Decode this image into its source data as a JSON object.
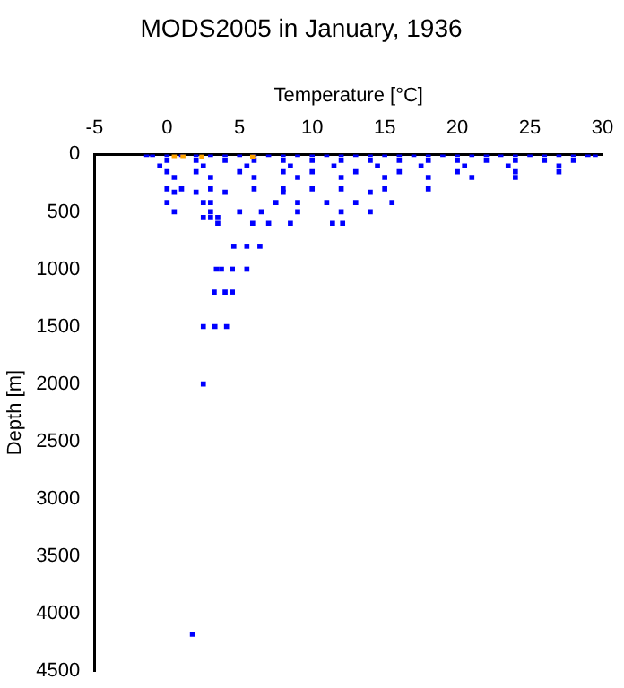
{
  "chart_data": {
    "type": "scatter",
    "title": "MODS2005 in January, 1936",
    "xlabel": "Temperature [°C]",
    "ylabel": "Depth [m]",
    "xlim": [
      -5,
      30
    ],
    "xticks": [
      -5,
      0,
      5,
      10,
      15,
      20,
      25,
      30
    ],
    "ylim": [
      4500,
      0
    ],
    "yticks": [
      0,
      500,
      1000,
      1500,
      2000,
      2500,
      3000,
      3500,
      4000,
      4500
    ],
    "grid": false,
    "legend": false,
    "marker": "square",
    "series": [
      {
        "color": "#0000ff",
        "x": [
          -1.4,
          -1,
          0,
          1,
          2,
          3,
          4,
          5,
          6,
          7,
          8,
          9,
          10,
          11,
          12,
          13,
          14,
          15,
          16,
          17,
          18,
          19,
          20,
          21,
          22,
          23,
          24,
          25,
          26,
          27,
          28,
          29,
          29.5,
          0,
          2,
          4,
          6,
          8,
          10,
          12,
          14,
          16,
          18,
          20,
          22,
          24,
          26,
          28,
          -0.5,
          2.5,
          5.5,
          8.5,
          11.5,
          14.5,
          17.5,
          20.5,
          23.5,
          27,
          0,
          2,
          5,
          8,
          10,
          13,
          16,
          20,
          24,
          27,
          0.5,
          3,
          6,
          9,
          12,
          15,
          18,
          21,
          24,
          0,
          1,
          3,
          6,
          8,
          10,
          12,
          15,
          18,
          0.5,
          2,
          4,
          8,
          14,
          0,
          2.5,
          3,
          7.5,
          9,
          11,
          13,
          15.5,
          0.5,
          3,
          5,
          6.5,
          9,
          12,
          14,
          2.5,
          3,
          3.5,
          3.5,
          5.9,
          7,
          8.5,
          11.4,
          12.1,
          4.6,
          5.5,
          6.4,
          3.4,
          3.75,
          4.5,
          5.5,
          3.25,
          4,
          4.5,
          2.5,
          3.3,
          4.1,
          2.5,
          1.75
        ],
        "values": [
          0,
          0,
          0,
          0,
          0,
          0,
          0,
          0,
          0,
          0,
          0,
          0,
          0,
          0,
          0,
          0,
          0,
          0,
          0,
          0,
          0,
          0,
          0,
          0,
          0,
          0,
          0,
          0,
          0,
          0,
          0,
          0,
          0,
          50,
          50,
          50,
          50,
          50,
          50,
          50,
          50,
          50,
          50,
          50,
          50,
          50,
          50,
          50,
          100,
          100,
          100,
          100,
          100,
          100,
          100,
          100,
          100,
          100,
          150,
          150,
          150,
          150,
          150,
          150,
          150,
          150,
          150,
          150,
          200,
          200,
          200,
          200,
          200,
          200,
          200,
          200,
          200,
          300,
          300,
          300,
          300,
          300,
          300,
          300,
          300,
          300,
          330,
          330,
          330,
          330,
          330,
          420,
          420,
          420,
          420,
          420,
          420,
          420,
          420,
          500,
          500,
          500,
          500,
          500,
          500,
          500,
          550,
          550,
          550,
          600,
          600,
          600,
          600,
          600,
          600,
          800,
          800,
          800,
          1000,
          1000,
          1000,
          1000,
          1200,
          1200,
          1200,
          1500,
          1500,
          1500,
          2000,
          4180
        ]
      },
      {
        "color": "#ffa500",
        "x": [
          0.5,
          1.1,
          2.4,
          5.9
        ],
        "values": [
          10,
          10,
          20,
          20
        ]
      }
    ]
  }
}
